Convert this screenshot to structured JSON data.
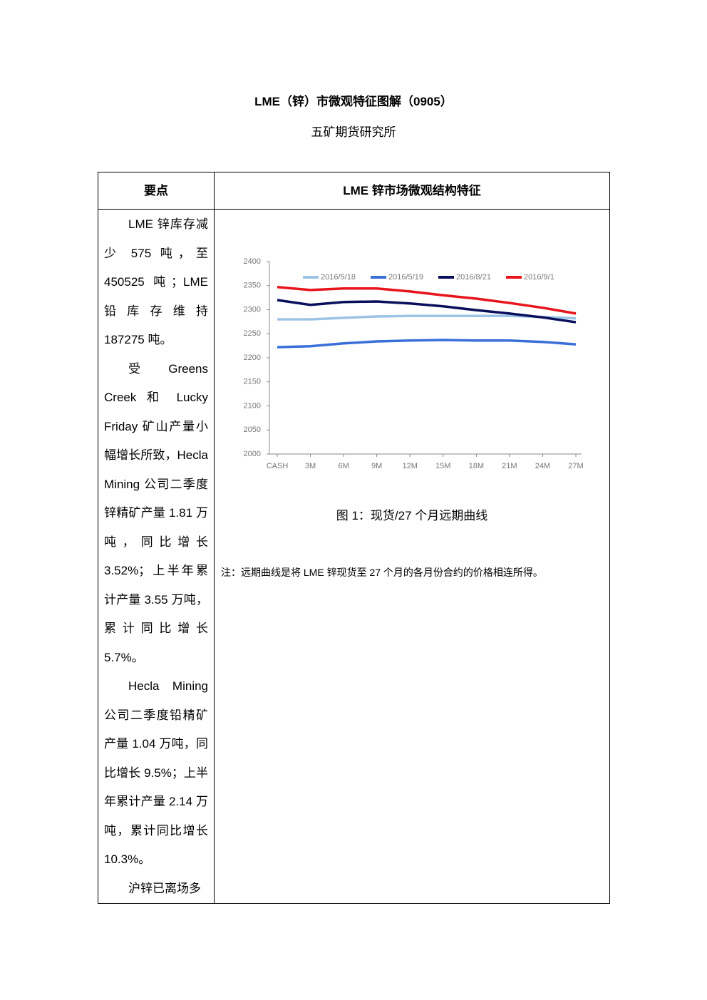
{
  "title": "LME（锌）市微观特征图解（0905）",
  "subtitle": "五矿期货研究所",
  "table": {
    "headers": [
      "要点",
      "LME 锌市场微观结构特征"
    ],
    "left_paragraphs": [
      "LME 锌库存减少 575 吨，至 450525 吨；LME 铅库存维持 187275 吨。",
      "受 Greens Creek 和 Lucky Friday 矿山产量小幅增长所致，Hecla Mining 公司二季度锌精矿产量 1.81 万吨，同比增长 3.52%；上半年累计产量 3.55 万吨，累计同比增长 5.7%。",
      "Hecla Mining 公司二季度铅精矿产量 1.04 万吨，同比增长 9.5%；上半年累计产量 2.14 万吨，累计同比增长 10.3%。",
      "沪锌已离场多"
    ],
    "figure_caption": "图 1：现货/27 个月远期曲线",
    "note": "注：远期曲线是将 LME 锌现货至 27 个月的各月份合约的价格相连所得。"
  },
  "chart_data": {
    "type": "line",
    "categories": [
      "CASH",
      "3M",
      "6M",
      "9M",
      "12M",
      "15M",
      "18M",
      "21M",
      "24M",
      "27M"
    ],
    "series": [
      {
        "name": "2016/5/18",
        "color": "#9dc3e6",
        "values": [
          2280,
          2280,
          2283,
          2286,
          2287,
          2287,
          2287,
          2287,
          2285,
          2282
        ]
      },
      {
        "name": "2016/5/19",
        "color": "#3a6fd8",
        "values": [
          2222,
          2224,
          2230,
          2234,
          2236,
          2237,
          2236,
          2236,
          2233,
          2228
        ]
      },
      {
        "name": "2016/8/21",
        "color": "#0a0f5c",
        "values": [
          2320,
          2310,
          2316,
          2317,
          2313,
          2307,
          2299,
          2292,
          2284,
          2274
        ]
      },
      {
        "name": "2016/9/1",
        "color": "#e8141b",
        "values": [
          2347,
          2341,
          2344,
          2344,
          2338,
          2330,
          2323,
          2314,
          2304,
          2292
        ]
      }
    ],
    "ylim": [
      2000,
      2400
    ],
    "yticks": [
      2000,
      2050,
      2100,
      2150,
      2200,
      2250,
      2300,
      2350,
      2400
    ],
    "grid": false
  }
}
